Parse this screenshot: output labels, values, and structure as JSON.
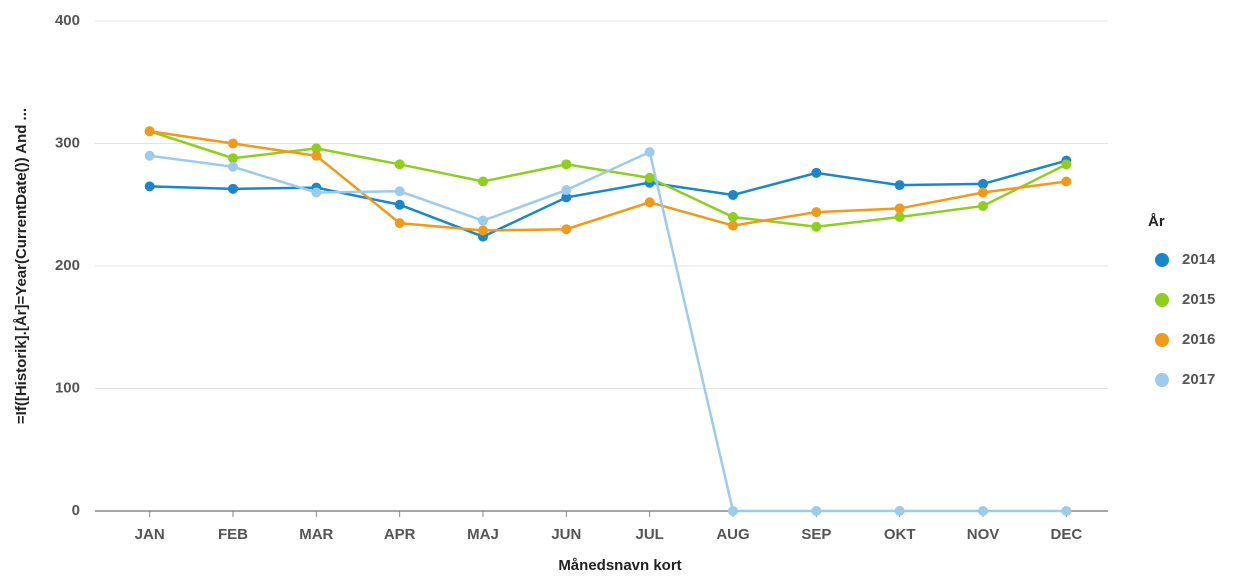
{
  "chart_data": {
    "type": "line",
    "x_label": "Månedsnavn kort",
    "y_label": "=If([Historik].[År]=Year(CurrentDate()) And ...",
    "legend_title": "År",
    "categories": [
      "JAN",
      "FEB",
      "MAR",
      "APR",
      "MAJ",
      "JUN",
      "JUL",
      "AUG",
      "SEP",
      "OKT",
      "NOV",
      "DEC"
    ],
    "series": [
      {
        "name": "2014",
        "color": "#1a87cc",
        "values": [
          265,
          263,
          264,
          250,
          224,
          256,
          268,
          258,
          276,
          266,
          267,
          286
        ]
      },
      {
        "name": "2015",
        "color": "#8fce1e",
        "values": [
          310,
          288,
          296,
          283,
          269,
          283,
          272,
          240,
          232,
          240,
          249,
          283
        ]
      },
      {
        "name": "2016",
        "color": "#f09a1a",
        "values": [
          310,
          300,
          290,
          235,
          229,
          230,
          252,
          233,
          244,
          247,
          260,
          269
        ]
      },
      {
        "name": "2017",
        "color": "#9dcbec",
        "values": [
          290,
          281,
          260,
          261,
          237,
          262,
          293,
          0,
          0,
          0,
          0,
          0
        ]
      }
    ],
    "ylim": [
      0,
      400
    ],
    "yticks": [
      0,
      100,
      200,
      300,
      400
    ],
    "grid": true,
    "legend": "right"
  }
}
